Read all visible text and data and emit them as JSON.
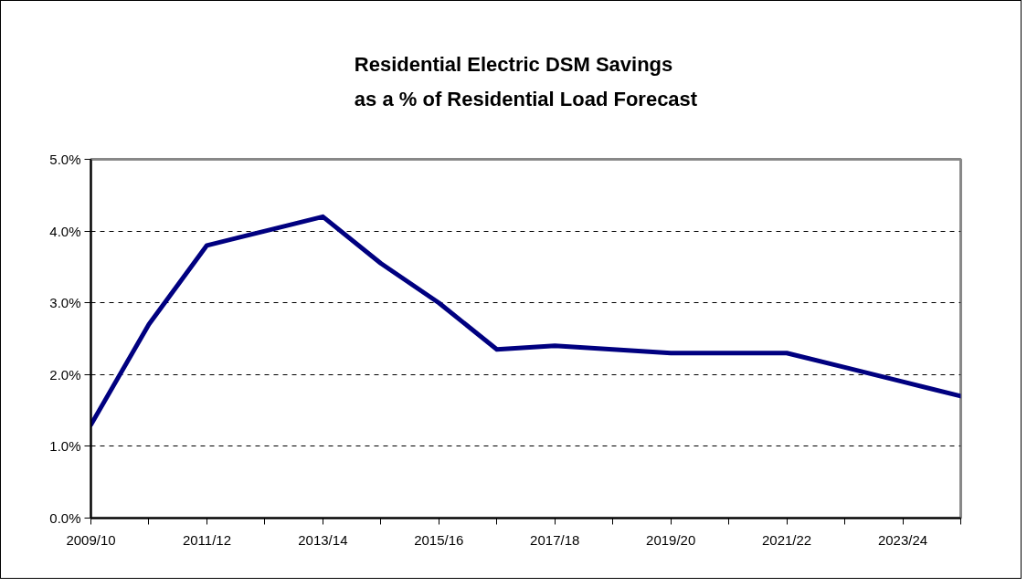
{
  "chart_data": {
    "type": "line",
    "title": "Residential  Electric DSM Savings\nas a % of Residential Load Forecast",
    "categories": [
      "2009/10",
      null,
      "2011/12",
      null,
      "2013/14",
      null,
      "2015/16",
      null,
      "2017/18",
      null,
      "2019/20",
      null,
      "2021/22",
      null,
      "2023/24",
      null
    ],
    "series": [
      {
        "color": "#000080",
        "values": [
          1.3,
          2.7,
          3.8,
          4.0,
          4.2,
          3.55,
          3.0,
          2.35,
          2.4,
          2.35,
          2.3,
          2.3,
          2.3,
          2.1,
          1.9,
          1.7
        ]
      }
    ],
    "ylim": [
      0,
      5
    ],
    "yticks": [
      {
        "value": 0,
        "label": "0.0%"
      },
      {
        "value": 1,
        "label": "1.0%"
      },
      {
        "value": 2,
        "label": "2.0%"
      },
      {
        "value": 3,
        "label": "3.0%"
      },
      {
        "value": 4,
        "label": "4.0%"
      },
      {
        "value": 5,
        "label": "5.0%"
      }
    ],
    "grid": "y",
    "line_style": "solid"
  }
}
